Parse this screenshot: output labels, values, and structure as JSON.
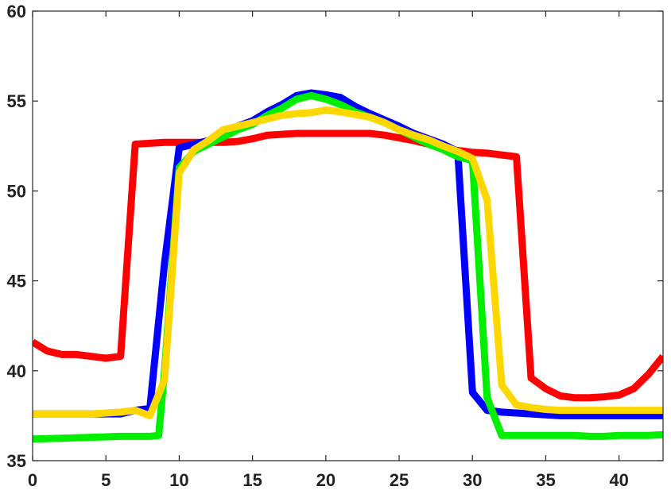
{
  "chart_data": {
    "type": "line",
    "title": "",
    "xlabel": "",
    "ylabel": "",
    "xlim": [
      0,
      43
    ],
    "ylim": [
      35,
      60
    ],
    "grid": false,
    "legend": "none",
    "x_ticks": [
      0,
      5,
      10,
      15,
      20,
      25,
      30,
      35,
      40
    ],
    "y_ticks": [
      35,
      40,
      45,
      50,
      55,
      60
    ],
    "x_tick_labels": [
      "0",
      "5",
      "10",
      "15",
      "20",
      "25",
      "30",
      "35",
      "40"
    ],
    "y_tick_labels": [
      "35",
      "40",
      "45",
      "50",
      "55",
      "60"
    ],
    "series": [
      {
        "color": "#ff0000",
        "x": [
          0,
          1,
          2,
          3,
          4,
          5,
          6,
          7,
          8,
          9,
          10,
          11,
          12,
          13,
          14,
          15,
          16,
          17,
          18,
          19,
          20,
          21,
          22,
          23,
          24,
          25,
          26,
          27,
          28,
          29,
          30,
          31,
          32,
          33,
          34,
          35,
          36,
          37,
          38,
          39,
          40,
          41,
          42,
          43
        ],
        "y": [
          41.6,
          41.1,
          40.9,
          40.9,
          40.8,
          40.7,
          40.8,
          52.6,
          52.65,
          52.7,
          52.7,
          52.7,
          52.7,
          52.7,
          52.75,
          52.9,
          53.1,
          53.15,
          53.2,
          53.2,
          53.2,
          53.2,
          53.2,
          53.2,
          53.1,
          52.95,
          52.8,
          52.6,
          52.4,
          52.25,
          52.15,
          52.1,
          52.0,
          51.9,
          39.6,
          39.0,
          38.6,
          38.5,
          38.5,
          38.55,
          38.65,
          39.0,
          39.8,
          40.8
        ]
      },
      {
        "color": "#0000ff",
        "x": [
          0,
          2,
          4,
          6,
          7,
          8,
          9,
          10,
          11,
          12,
          13,
          14,
          15,
          16,
          17,
          18,
          19,
          20,
          21,
          22,
          23,
          24,
          25,
          26,
          27,
          28,
          29,
          30,
          31,
          32,
          33,
          34,
          35,
          36,
          37,
          38,
          39,
          40,
          41,
          42,
          43
        ],
        "y": [
          37.6,
          37.6,
          37.6,
          37.6,
          37.8,
          37.9,
          46.0,
          52.4,
          52.6,
          52.8,
          53.2,
          53.6,
          53.9,
          54.4,
          54.8,
          55.3,
          55.45,
          55.35,
          55.2,
          54.7,
          54.3,
          53.95,
          53.6,
          53.2,
          52.9,
          52.6,
          52.2,
          38.8,
          37.8,
          37.7,
          37.65,
          37.6,
          37.55,
          37.5,
          37.5,
          37.5,
          37.5,
          37.5,
          37.5,
          37.5,
          37.5
        ]
      },
      {
        "color": "#00ee00",
        "x": [
          0,
          2,
          4,
          6,
          8,
          8.6,
          9,
          10,
          11,
          12,
          13,
          14,
          15,
          16,
          17,
          18,
          19,
          20,
          21,
          22,
          23,
          24,
          25,
          26,
          27,
          28,
          29,
          30,
          31,
          32,
          33,
          34,
          35,
          36,
          37,
          38,
          39,
          40,
          41,
          42,
          43
        ],
        "y": [
          36.2,
          36.25,
          36.3,
          36.35,
          36.35,
          36.4,
          40.0,
          51.3,
          52.2,
          52.6,
          53.0,
          53.4,
          53.7,
          54.2,
          54.6,
          55.1,
          55.3,
          55.1,
          54.8,
          54.4,
          54.1,
          53.8,
          53.4,
          53.0,
          52.6,
          52.3,
          51.9,
          51.7,
          38.5,
          36.4,
          36.4,
          36.4,
          36.4,
          36.4,
          36.4,
          36.35,
          36.35,
          36.4,
          36.4,
          36.4,
          36.45
        ]
      },
      {
        "color": "#ffd700",
        "x": [
          0,
          2,
          4,
          6,
          7,
          8,
          9,
          10,
          11,
          12,
          13,
          14,
          15,
          16,
          17,
          18,
          19,
          20,
          21,
          22,
          23,
          24,
          25,
          26,
          27,
          28,
          29,
          30,
          31,
          32,
          33,
          34,
          35,
          36,
          37,
          38,
          39,
          40,
          41,
          42,
          43
        ],
        "y": [
          37.6,
          37.6,
          37.6,
          37.7,
          37.8,
          37.5,
          39.5,
          51.0,
          52.3,
          52.8,
          53.4,
          53.6,
          53.8,
          54.0,
          54.2,
          54.3,
          54.35,
          54.5,
          54.4,
          54.25,
          54.1,
          53.8,
          53.4,
          53.1,
          52.85,
          52.5,
          52.2,
          51.8,
          49.5,
          39.2,
          38.1,
          37.95,
          37.85,
          37.8,
          37.8,
          37.8,
          37.8,
          37.8,
          37.8,
          37.8,
          37.8
        ]
      }
    ]
  }
}
